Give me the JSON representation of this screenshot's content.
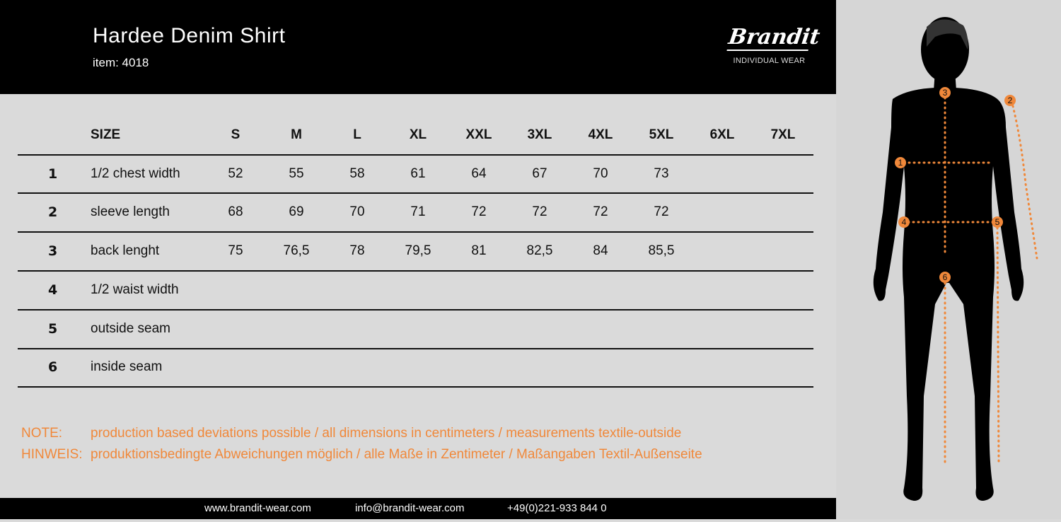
{
  "header": {
    "title": "Hardee Denim Shirt",
    "item": "item: 4018",
    "brand": "Brandit",
    "brand_tagline": "INDIVIDUAL WEAR"
  },
  "table": {
    "size_label": "SIZE",
    "sizes": [
      "S",
      "M",
      "L",
      "XL",
      "XXL",
      "3XL",
      "4XL",
      "5XL",
      "6XL",
      "7XL"
    ],
    "rows": [
      {
        "num": "1",
        "label": "1/2 chest width",
        "values": [
          "52",
          "55",
          "58",
          "61",
          "64",
          "67",
          "70",
          "73",
          "",
          ""
        ]
      },
      {
        "num": "2",
        "label": "sleeve length",
        "values": [
          "68",
          "69",
          "70",
          "71",
          "72",
          "72",
          "72",
          "72",
          "",
          ""
        ]
      },
      {
        "num": "3",
        "label": "back lenght",
        "values": [
          "75",
          "76,5",
          "78",
          "79,5",
          "81",
          "82,5",
          "84",
          "85,5",
          "",
          ""
        ]
      },
      {
        "num": "4",
        "label": "1/2 waist width",
        "values": [
          "",
          "",
          "",
          "",
          "",
          "",
          "",
          "",
          "",
          ""
        ]
      },
      {
        "num": "5",
        "label": "outside seam",
        "values": [
          "",
          "",
          "",
          "",
          "",
          "",
          "",
          "",
          "",
          ""
        ]
      },
      {
        "num": "6",
        "label": "inside seam",
        "values": [
          "",
          "",
          "",
          "",
          "",
          "",
          "",
          "",
          "",
          ""
        ]
      }
    ]
  },
  "notes": {
    "note_label": "NOTE:",
    "note_text": "production based deviations possible / all dimensions in centimeters / measurements textile-outside",
    "hinweis_label": "HINWEIS:",
    "hinweis_text": "produktionsbedingte Abweichungen möglich / alle Maße in Zentimeter / Maßangaben Textil-Außenseite"
  },
  "footer": {
    "website": "www.brandit-wear.com",
    "email": "info@brandit-wear.com",
    "phone": "+49(0)221-933 844 0"
  },
  "figure": {
    "markers": [
      "1",
      "2",
      "3",
      "4",
      "5",
      "6"
    ]
  },
  "colors": {
    "accent": "#f0883a",
    "header_bg": "#000000",
    "page_bg": "#dadada"
  }
}
